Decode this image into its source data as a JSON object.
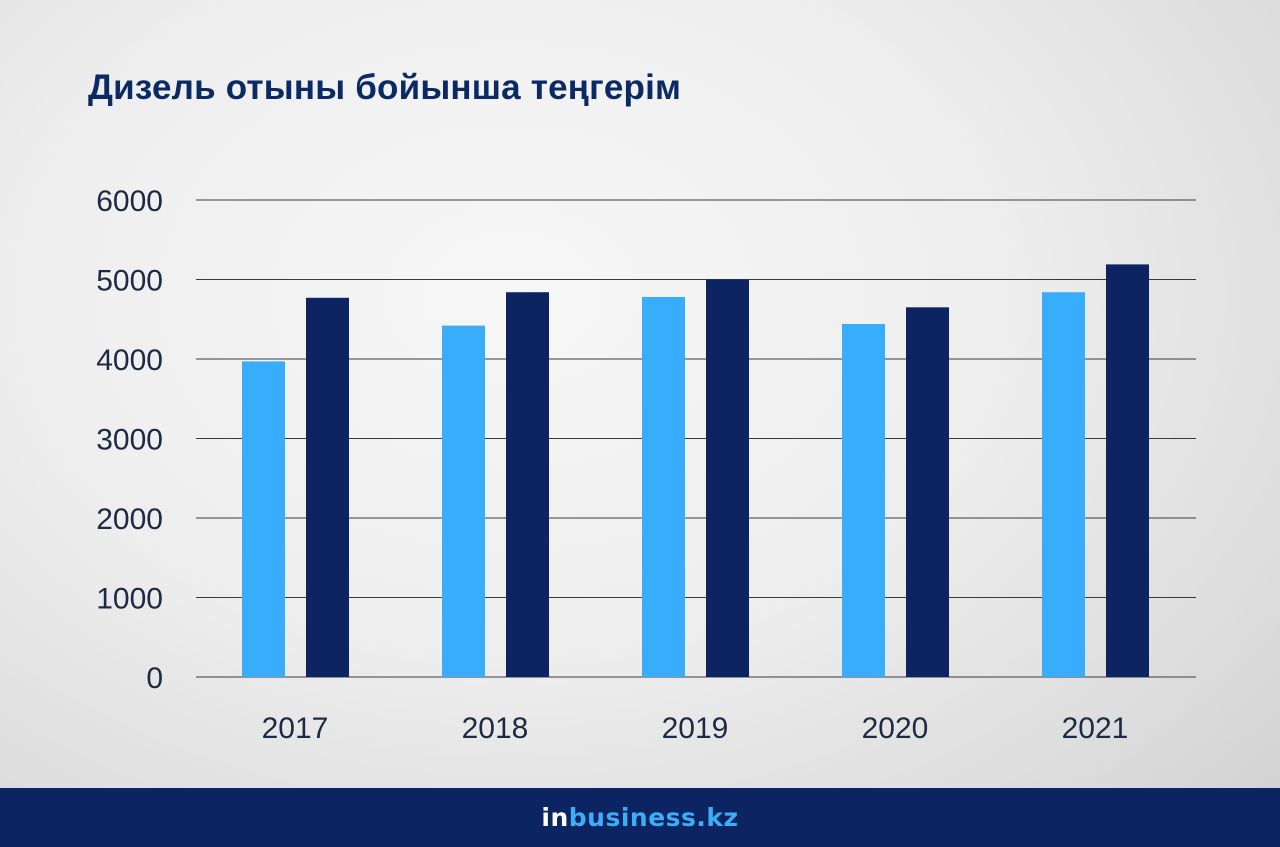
{
  "title": "Дизель отыны бойынша теңгерім",
  "brand": {
    "prefix": "in",
    "rest": "business.kz"
  },
  "colors": {
    "series_light": "#38adfb",
    "series_dark": "#0c2461",
    "title": "#0b2a63",
    "grid": "#3a3a3a",
    "tick": "#1e2a45"
  },
  "chart_data": {
    "type": "bar",
    "title": "Дизель отыны бойынша теңгерім",
    "categories": [
      "2017",
      "2018",
      "2019",
      "2020",
      "2021"
    ],
    "series": [
      {
        "values": [
          3970,
          4420,
          4780,
          4440,
          4840
        ]
      },
      {
        "values": [
          4770,
          4840,
          5000,
          4650,
          5190
        ]
      }
    ],
    "ylim": [
      0,
      6000
    ],
    "yticks": [
      0,
      1000,
      2000,
      3000,
      4000,
      5000,
      6000
    ],
    "grid": true,
    "legend": "none"
  }
}
